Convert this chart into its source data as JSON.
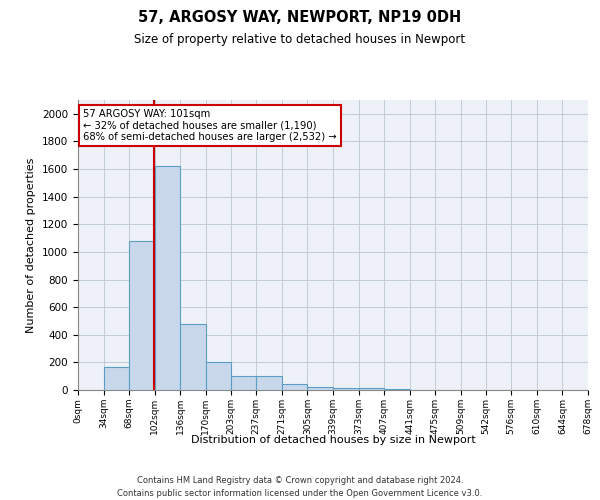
{
  "title_line1": "57, ARGOSY WAY, NEWPORT, NP19 0DH",
  "title_line2": "Size of property relative to detached houses in Newport",
  "xlabel": "Distribution of detached houses by size in Newport",
  "ylabel": "Number of detached properties",
  "bin_edges": [
    0,
    34,
    68,
    102,
    136,
    170,
    203,
    237,
    271,
    305,
    339,
    373,
    407,
    441,
    475,
    509,
    542,
    576,
    610,
    644,
    678
  ],
  "bar_heights": [
    0,
    165,
    1080,
    1620,
    480,
    200,
    100,
    100,
    40,
    25,
    15,
    15,
    5,
    0,
    0,
    0,
    0,
    0,
    0,
    0
  ],
  "bar_color": "#c8d8ea",
  "bar_edge_color": "#5a9ec8",
  "grid_color": "#c0ccd8",
  "bg_color": "#eef2f8",
  "property_line_x": 101,
  "property_line_color": "#cc0000",
  "annotation_text": "57 ARGOSY WAY: 101sqm\n← 32% of detached houses are smaller (1,190)\n68% of semi-detached houses are larger (2,532) →",
  "annotation_box_color": "#ffffff",
  "annotation_box_edge": "#cc0000",
  "ylim": [
    0,
    2100
  ],
  "yticks": [
    0,
    200,
    400,
    600,
    800,
    1000,
    1200,
    1400,
    1600,
    1800,
    2000
  ],
  "footnote1": "Contains HM Land Registry data © Crown copyright and database right 2024.",
  "footnote2": "Contains public sector information licensed under the Open Government Licence v3.0."
}
